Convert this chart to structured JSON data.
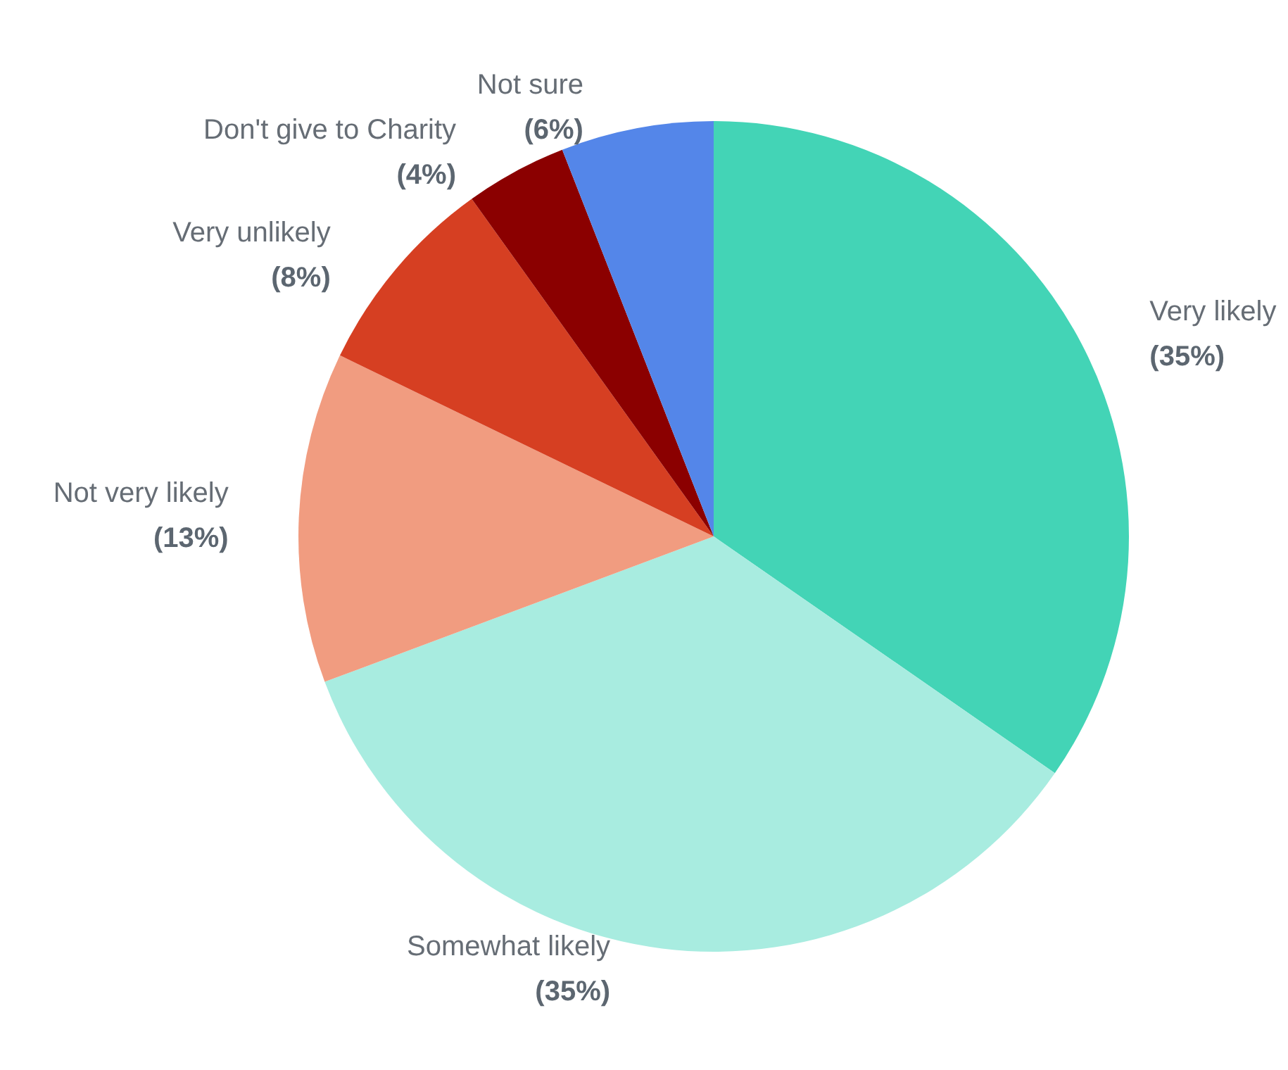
{
  "chart_data": {
    "type": "pie",
    "categories": [
      "Very likely",
      "Somewhat likely",
      "Not very likely",
      "Very unlikely",
      "Don't give to Charity",
      "Not sure"
    ],
    "values": [
      35,
      35,
      13,
      8,
      4,
      6
    ],
    "value_labels": [
      "(35%)",
      "(35%)",
      "(13%)",
      "(8%)",
      "(4%)",
      "(6%)"
    ],
    "colors": [
      "#43d4b6",
      "#a8ece0",
      "#f19c80",
      "#d63f22",
      "#8b0000",
      "#5486e9"
    ],
    "legend": false
  }
}
